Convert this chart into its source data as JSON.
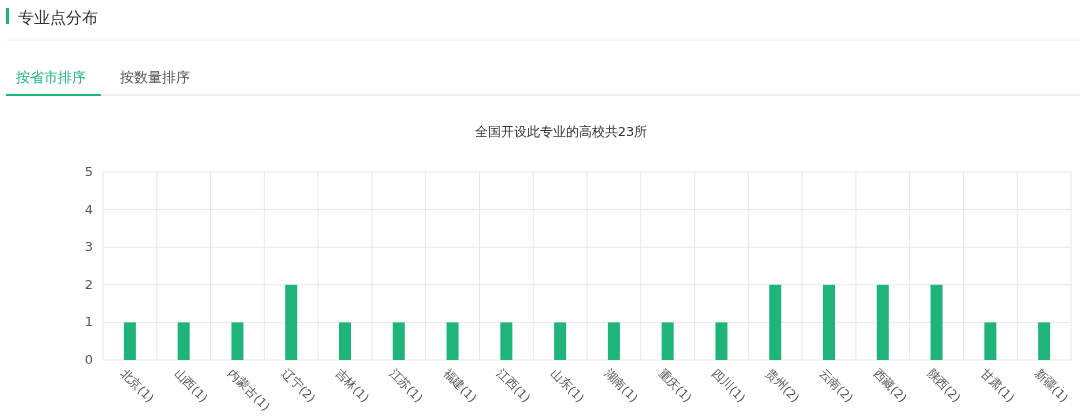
{
  "chart_data": {
    "type": "bar",
    "title": "全国开设此专业的高校共23所",
    "annotations": [
      "专业点分布",
      "按省市排序",
      "按数量排序"
    ],
    "categories": [
      "北京(1)",
      "山西(1)",
      "内蒙古(1)",
      "辽宁(2)",
      "吉林(1)",
      "江苏(1)",
      "福建(1)",
      "江西(1)",
      "山东(1)",
      "湖南(1)",
      "重庆(1)",
      "四川(1)",
      "贵州(2)",
      "云南(2)",
      "西藏(2)",
      "陕西(2)",
      "甘肃(1)",
      "新疆(1)"
    ],
    "values": [
      1,
      1,
      1,
      2,
      1,
      1,
      1,
      1,
      1,
      1,
      1,
      1,
      2,
      2,
      2,
      2,
      1,
      1
    ],
    "color": "#1fb57a",
    "ylim": [
      0,
      5
    ],
    "yticks": [
      0,
      1,
      2,
      3,
      4,
      5
    ],
    "grid": true
  }
}
